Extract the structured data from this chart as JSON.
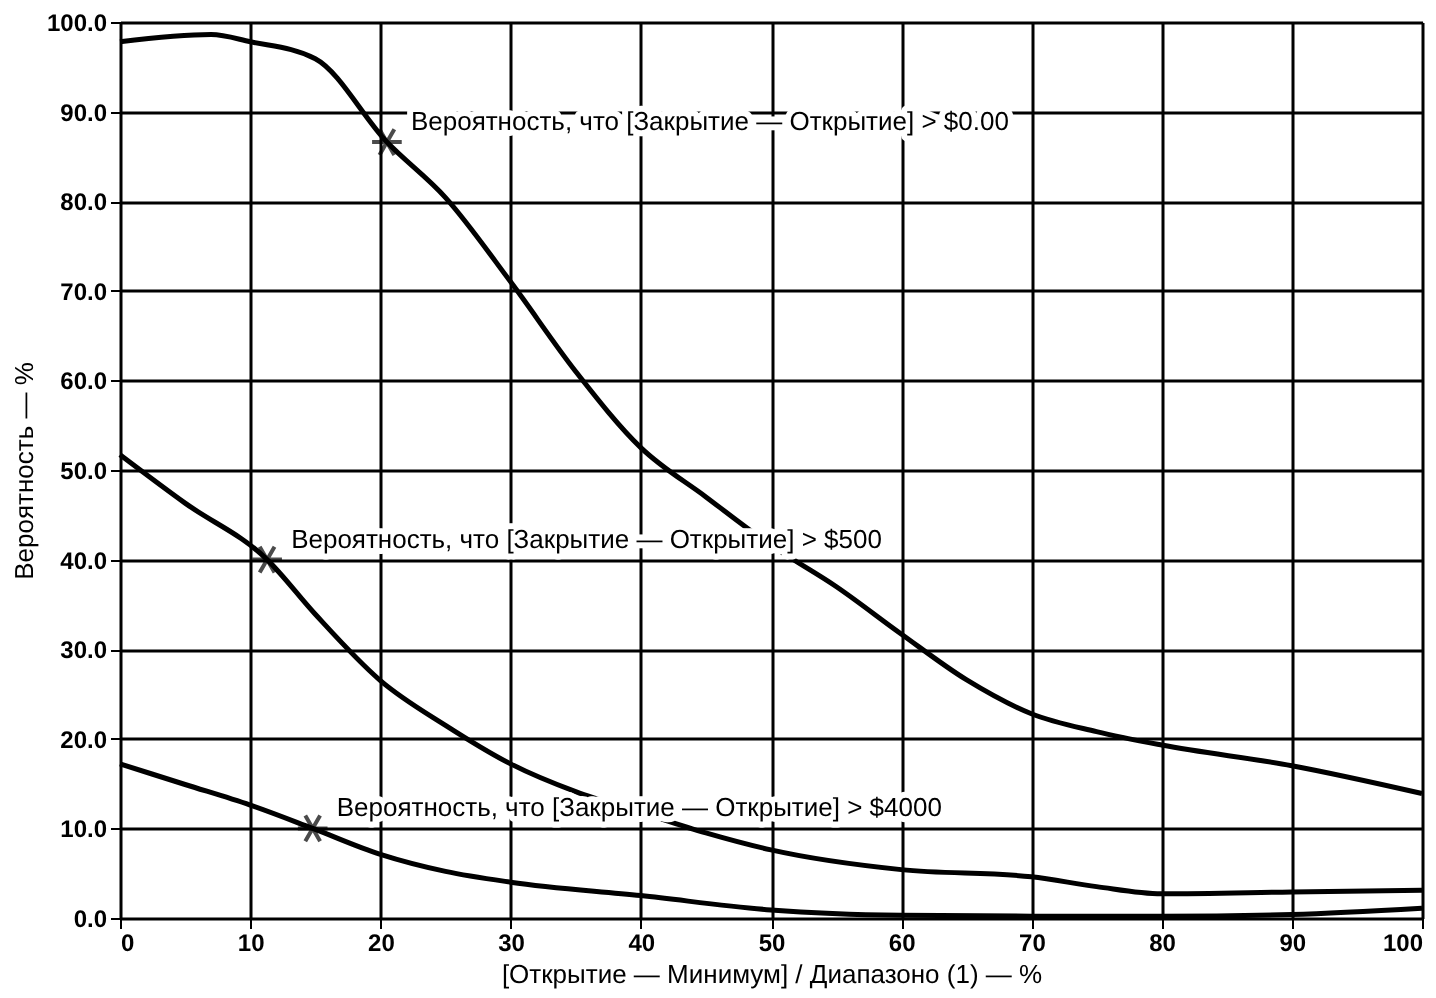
{
  "chart_data": {
    "type": "line",
    "xlabel": "[Открытие — Минимум] / Диапазоно (1) — %",
    "ylabel": "Вероятность — %",
    "xlim": [
      0,
      100
    ],
    "xticks": [
      0,
      10,
      20,
      30,
      40,
      50,
      60,
      70,
      80,
      90,
      100
    ],
    "ylim": [
      0,
      100
    ],
    "yticks": [
      {
        "value": 0,
        "label": "0.0"
      },
      {
        "value": 10,
        "label": "10.0"
      },
      {
        "value": 20,
        "label": "20.0"
      },
      {
        "value": 30,
        "label": "30.0"
      },
      {
        "value": 40,
        "label": "40.0"
      },
      {
        "value": 50,
        "label": "50.0"
      },
      {
        "value": 60,
        "label": "60.0"
      },
      {
        "value": 70,
        "label": "70.0"
      },
      {
        "value": 80,
        "label": "80.0"
      },
      {
        "value": 90,
        "label": "90.0"
      },
      {
        "value": 100,
        "label": "100.0"
      }
    ],
    "grid": true,
    "marker": "none",
    "line_style": "solid",
    "series": [
      {
        "color": "#000000",
        "x": [
          0,
          7,
          10,
          15,
          20.5,
          25,
          30,
          35,
          40,
          45,
          50,
          55,
          60,
          65,
          70,
          75,
          80,
          90,
          100
        ],
        "values": [
          97.8,
          98.6,
          97.8,
          95.9,
          86.6,
          80.4,
          71,
          61,
          52.5,
          47,
          41.6,
          37,
          31.7,
          26.6,
          22.8,
          20.8,
          19.3,
          17,
          13.9
        ]
      },
      {
        "color": "#000000",
        "x": [
          0,
          5,
          11.3,
          15,
          20,
          25,
          30,
          35,
          40,
          45,
          50,
          60,
          70,
          75,
          80,
          90,
          100
        ],
        "values": [
          51.7,
          46.3,
          40,
          33.9,
          26.5,
          21.5,
          17.2,
          14.1,
          11.8,
          9.5,
          7.6,
          5.4,
          4.6,
          3.5,
          2.7,
          2.9,
          3.1
        ]
      },
      {
        "color": "#000000",
        "x": [
          0,
          5,
          10,
          14.8,
          20,
          25,
          30,
          40,
          50,
          60,
          70,
          80,
          90,
          100
        ],
        "values": [
          17.2,
          14.9,
          12.6,
          10,
          7.1,
          5.2,
          4,
          2.5,
          0.9,
          0.3,
          0.2,
          0.2,
          0.4,
          1.1
        ]
      }
    ],
    "annotations": [
      {
        "text": "Вероятность, что [Закрытие — Открытие] > $0.00",
        "x": 20.5,
        "y": 86.6
      },
      {
        "text": "Вероятность, что [Закрытие — Открытие] > $500",
        "x": 11.3,
        "y": 40
      },
      {
        "text": "Вероятность, что [Закрытие — Открытие] > $4000",
        "x": 14.8,
        "y": 10
      }
    ]
  }
}
